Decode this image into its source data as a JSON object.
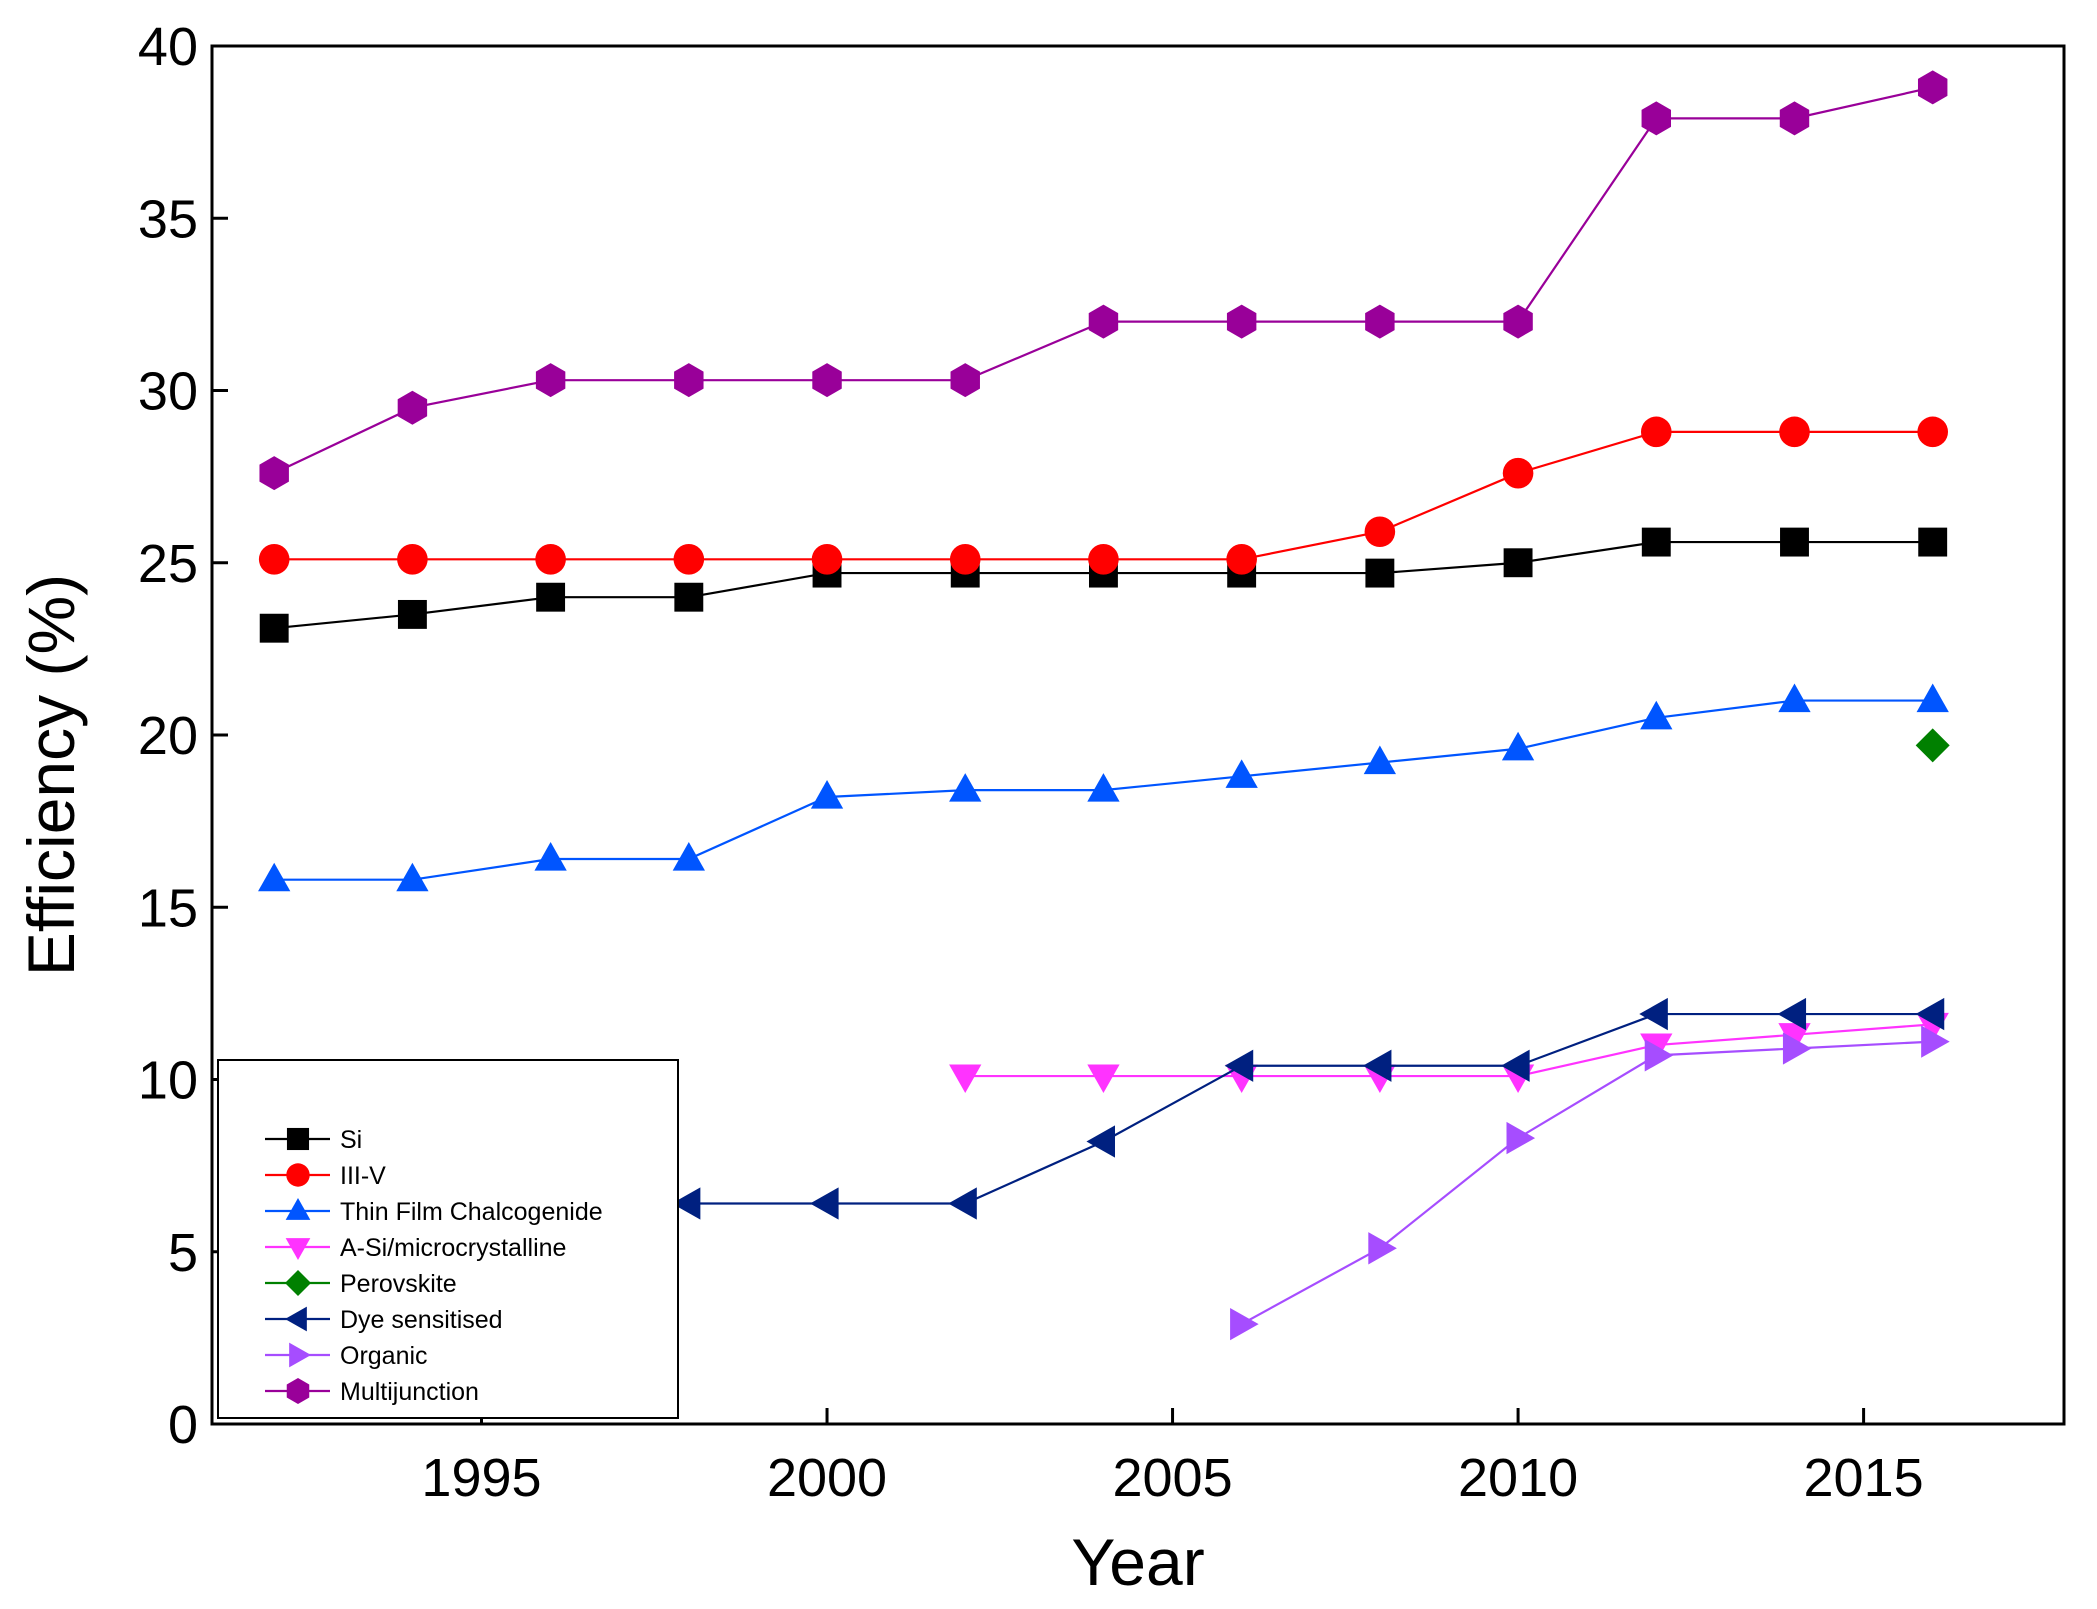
{
  "chart_data": {
    "type": "line",
    "title": "",
    "xlabel": "Year",
    "ylabel": "Efficiency (%)",
    "xlim": [
      1991.1,
      2017.9
    ],
    "ylim": [
      0,
      40
    ],
    "xticks": [
      1995,
      2000,
      2005,
      2010,
      2015
    ],
    "yticks": [
      0,
      5,
      10,
      15,
      20,
      25,
      30,
      35,
      40
    ],
    "grid": false,
    "legend_position": "bottom-left",
    "series": [
      {
        "name": "Si",
        "color": "#000000",
        "marker": "square",
        "x": [
          1992,
          1994,
          1996,
          1998,
          2000,
          2002,
          2004,
          2006,
          2008,
          2010,
          2012,
          2014,
          2016
        ],
        "y": [
          23.1,
          23.5,
          24.0,
          24.0,
          24.7,
          24.7,
          24.7,
          24.7,
          24.7,
          25.0,
          25.6,
          25.6,
          25.6
        ]
      },
      {
        "name": "III-V",
        "color": "#ff0000",
        "marker": "circle",
        "x": [
          1992,
          1994,
          1996,
          1998,
          2000,
          2002,
          2004,
          2006,
          2008,
          2010,
          2012,
          2014,
          2016
        ],
        "y": [
          25.1,
          25.1,
          25.1,
          25.1,
          25.1,
          25.1,
          25.1,
          25.1,
          25.9,
          27.6,
          28.8,
          28.8,
          28.8
        ]
      },
      {
        "name": "Thin Film Chalcogenide",
        "color": "#0055ff",
        "marker": "triangle-up",
        "x": [
          1992,
          1994,
          1996,
          1998,
          2000,
          2002,
          2004,
          2006,
          2008,
          2010,
          2012,
          2014,
          2016
        ],
        "y": [
          15.8,
          15.8,
          16.4,
          16.4,
          18.2,
          18.4,
          18.4,
          18.8,
          19.2,
          19.6,
          20.5,
          21.0,
          21.0
        ]
      },
      {
        "name": "A-Si/microcrystalline",
        "color": "#ff33ff",
        "marker": "triangle-down",
        "x": [
          2002,
          2004,
          2006,
          2008,
          2010,
          2012,
          2014,
          2016
        ],
        "y": [
          10.1,
          10.1,
          10.1,
          10.1,
          10.1,
          11.0,
          11.3,
          11.6
        ]
      },
      {
        "name": "Perovskite",
        "color": "#008000",
        "marker": "diamond",
        "x": [
          2016
        ],
        "y": [
          19.7
        ]
      },
      {
        "name": "Dye sensitised",
        "color": "#002080",
        "marker": "triangle-left",
        "x": [
          1998,
          2000,
          2002,
          2004,
          2006,
          2008,
          2010,
          2012,
          2014,
          2016
        ],
        "y": [
          6.4,
          6.4,
          6.4,
          8.2,
          10.4,
          10.4,
          10.4,
          11.9,
          11.9,
          11.9
        ]
      },
      {
        "name": "Organic",
        "color": "#a64dff",
        "marker": "triangle-right",
        "x": [
          2006,
          2008,
          2010,
          2012,
          2014,
          2016
        ],
        "y": [
          2.9,
          5.1,
          8.3,
          10.7,
          10.9,
          11.1
        ]
      },
      {
        "name": "Multijunction",
        "color": "#990099",
        "marker": "hexagon",
        "x": [
          1992,
          1994,
          1996,
          1998,
          2000,
          2002,
          2004,
          2006,
          2008,
          2010,
          2012,
          2014,
          2016
        ],
        "y": [
          27.6,
          29.5,
          30.3,
          30.3,
          30.3,
          30.3,
          32.0,
          32.0,
          32.0,
          32.0,
          37.9,
          37.9,
          38.8
        ]
      }
    ]
  }
}
